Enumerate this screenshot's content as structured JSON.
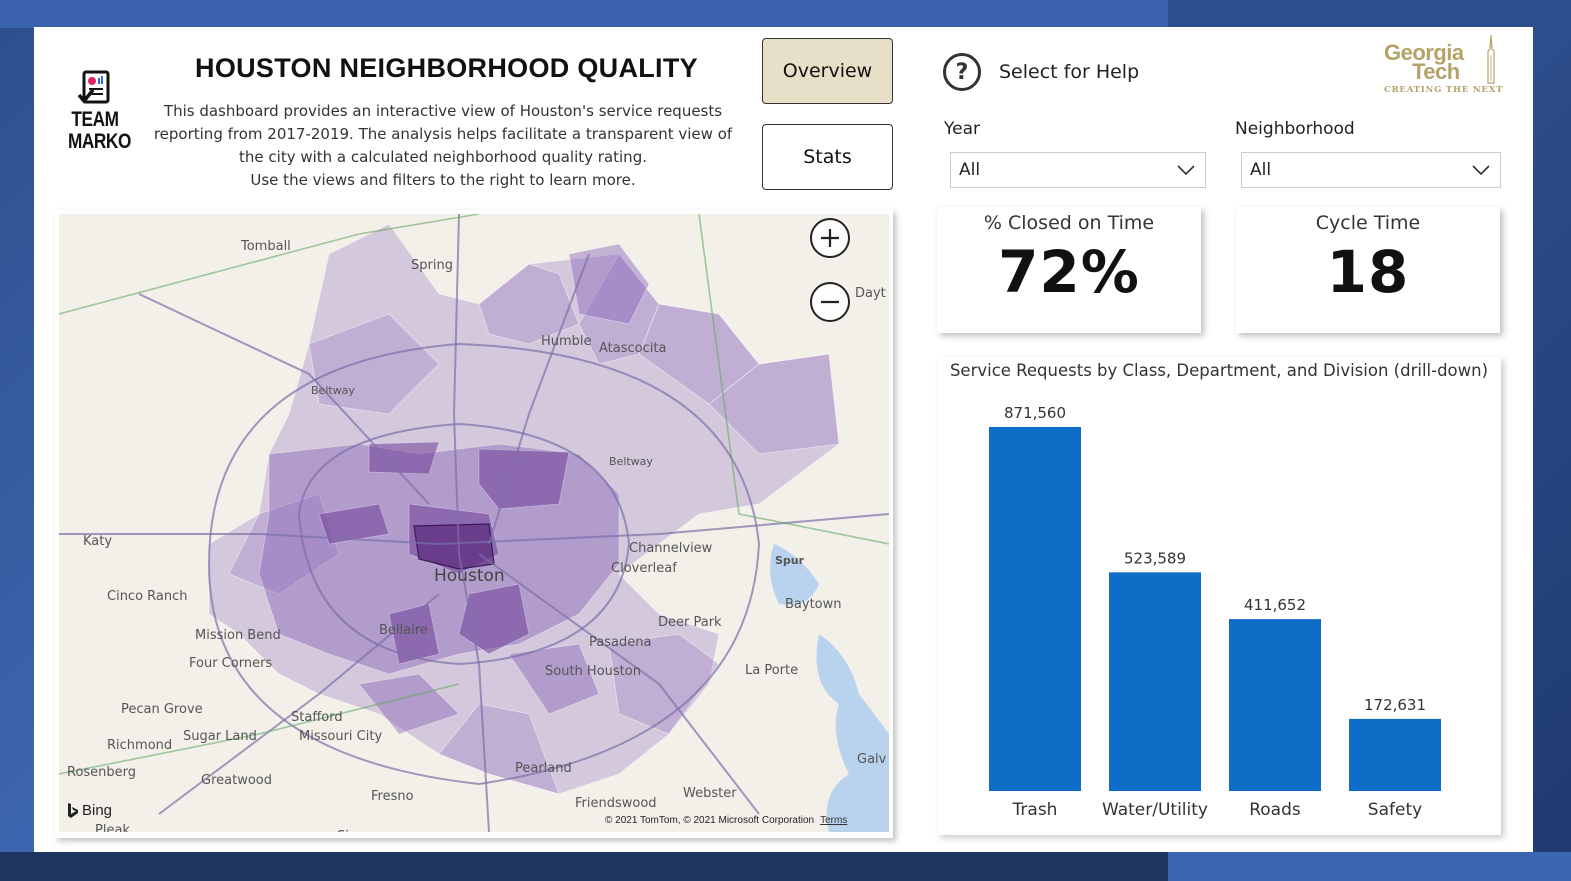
{
  "header": {
    "title": "HOUSTON NEIGHBORHOOD QUALITY",
    "description_lines": [
      "This dashboard provides an interactive view of Houston's service requests",
      "reporting from 2017-2019. The analysis helps facilitate a transparent view of",
      "the city with a calculated neighborhood quality rating.",
      "Use the views and filters to the right to learn more."
    ]
  },
  "logo": {
    "line1": "TEAM",
    "line2": "MARKO"
  },
  "nav": {
    "overview_label": "Overview",
    "stats_label": "Stats"
  },
  "help": {
    "label": "Select for Help"
  },
  "gt_logo": {
    "word1": "Georgia",
    "word2": "Tech",
    "tagline": "CREATING THE NEXT",
    "color": "#b3a369"
  },
  "filters": {
    "year": {
      "label": "Year",
      "value": "All"
    },
    "neighborhood": {
      "label": "Neighborhood",
      "value": "All"
    }
  },
  "kpis": {
    "closed_on_time": {
      "label": "% Closed on Time",
      "value": "72%"
    },
    "cycle_time": {
      "label": "Cycle Time",
      "value": "18"
    }
  },
  "map": {
    "places": [
      "Tomball",
      "Spring",
      "Humble",
      "Atascocita",
      "Beltway",
      "Katy",
      "Cinco Ranch",
      "Mission Bend",
      "Four Corners",
      "Houston",
      "Bellaire",
      "Channelview",
      "Cloverleaf",
      "Baytown",
      "Deer Park",
      "Pasadena",
      "South Houston",
      "La Porte",
      "Pecan Grove",
      "Sugar Land",
      "Richmond",
      "Stafford",
      "Missouri City",
      "Rosenberg",
      "Greatwood",
      "Pearland",
      "Fresno",
      "Friendswood",
      "Webster",
      "Pleak",
      "Sienna",
      "Dayt",
      "Galv",
      "Spur"
    ],
    "bing_label": "Bing",
    "copyright": "© 2021 TomTom, © 2021 Microsoft Corporation",
    "terms_label": "Terms",
    "region_color": "#9b7fc4"
  },
  "chart_data": {
    "type": "bar",
    "title": "Service Requests by Class, Department, and Division (drill-down)",
    "categories": [
      "Trash",
      "Water/Utility",
      "Roads",
      "Safety"
    ],
    "values": [
      871560,
      523589,
      411652,
      172631
    ],
    "value_labels": [
      "871,560",
      "523,589",
      "411,652",
      "172,631"
    ],
    "ylim": [
      0,
      871560
    ],
    "bar_color": "#0f6cc7",
    "grid": false,
    "legend": "none"
  }
}
